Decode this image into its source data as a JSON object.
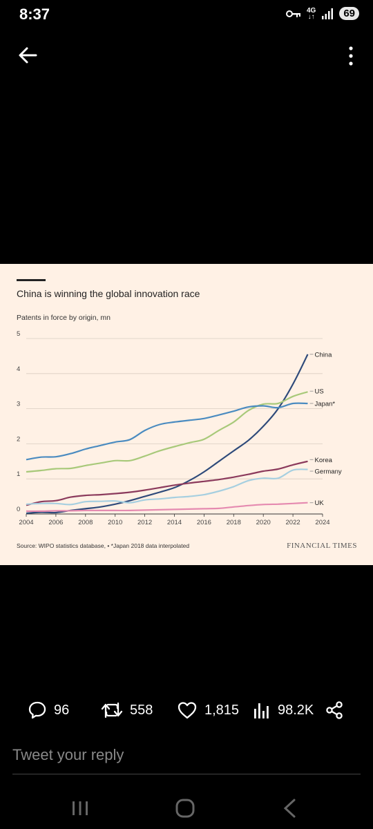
{
  "status_bar": {
    "time": "8:37",
    "network": "4G",
    "battery": "69"
  },
  "chart": {
    "title": "China is winning the global innovation race",
    "subtitle": "Patents in force by origin, mn",
    "source": "Source: WIPO statistics database, • *Japan 2018 data interpolated",
    "brand": "FINANCIAL TIMES"
  },
  "chart_data": {
    "type": "line",
    "title": "China is winning the global innovation race",
    "ylabel": "Patents in force by origin, mn",
    "xlim": [
      2004,
      2024
    ],
    "ylim": [
      0,
      5
    ],
    "x_ticks": [
      2004,
      2006,
      2008,
      2010,
      2012,
      2014,
      2016,
      2018,
      2020,
      2022,
      2024
    ],
    "y_ticks": [
      0,
      1,
      2,
      3,
      4,
      5
    ],
    "grid": true,
    "legend": "inline-right",
    "x": [
      2004,
      2005,
      2006,
      2007,
      2008,
      2009,
      2010,
      2011,
      2012,
      2013,
      2014,
      2015,
      2016,
      2017,
      2018,
      2019,
      2020,
      2021,
      2022,
      2023
    ],
    "series": [
      {
        "name": "China",
        "color": "#2E4A7A",
        "values": [
          0.02,
          0.05,
          0.04,
          0.1,
          0.15,
          0.2,
          0.28,
          0.38,
          0.5,
          0.62,
          0.75,
          0.95,
          1.2,
          1.5,
          1.8,
          2.1,
          2.5,
          3.0,
          3.7,
          4.55
        ]
      },
      {
        "name": "US",
        "color": "#A8C97A",
        "values": [
          1.2,
          1.24,
          1.29,
          1.3,
          1.38,
          1.45,
          1.52,
          1.52,
          1.65,
          1.8,
          1.92,
          2.03,
          2.13,
          2.38,
          2.62,
          2.95,
          3.13,
          3.15,
          3.35,
          3.48
        ]
      },
      {
        "name": "Japan*",
        "color": "#4A8BC0",
        "values": [
          1.55,
          1.62,
          1.63,
          1.72,
          1.85,
          1.95,
          2.05,
          2.12,
          2.38,
          2.55,
          2.62,
          2.67,
          2.72,
          2.82,
          2.93,
          3.05,
          3.08,
          3.03,
          3.15,
          3.15
        ]
      },
      {
        "name": "Korea",
        "color": "#8B3A5C",
        "values": [
          0.25,
          0.35,
          0.38,
          0.48,
          0.53,
          0.55,
          0.58,
          0.62,
          0.68,
          0.75,
          0.82,
          0.88,
          0.93,
          0.98,
          1.05,
          1.13,
          1.22,
          1.28,
          1.4,
          1.5
        ]
      },
      {
        "name": "Germany",
        "color": "#A6CFE0",
        "values": [
          0.28,
          0.3,
          0.3,
          0.27,
          0.35,
          0.36,
          0.37,
          0.32,
          0.4,
          0.43,
          0.47,
          0.5,
          0.55,
          0.65,
          0.78,
          0.95,
          1.02,
          1.02,
          1.25,
          1.27
        ]
      },
      {
        "name": "UK",
        "color": "#E58AB0",
        "values": [
          0.08,
          0.08,
          0.09,
          0.09,
          0.1,
          0.1,
          0.1,
          0.1,
          0.11,
          0.12,
          0.13,
          0.14,
          0.15,
          0.16,
          0.2,
          0.24,
          0.27,
          0.28,
          0.3,
          0.32
        ]
      }
    ]
  },
  "actions": {
    "replies": "96",
    "retweets": "558",
    "likes": "1,815",
    "views": "98.2K"
  },
  "reply": {
    "placeholder": "Tweet your reply"
  }
}
